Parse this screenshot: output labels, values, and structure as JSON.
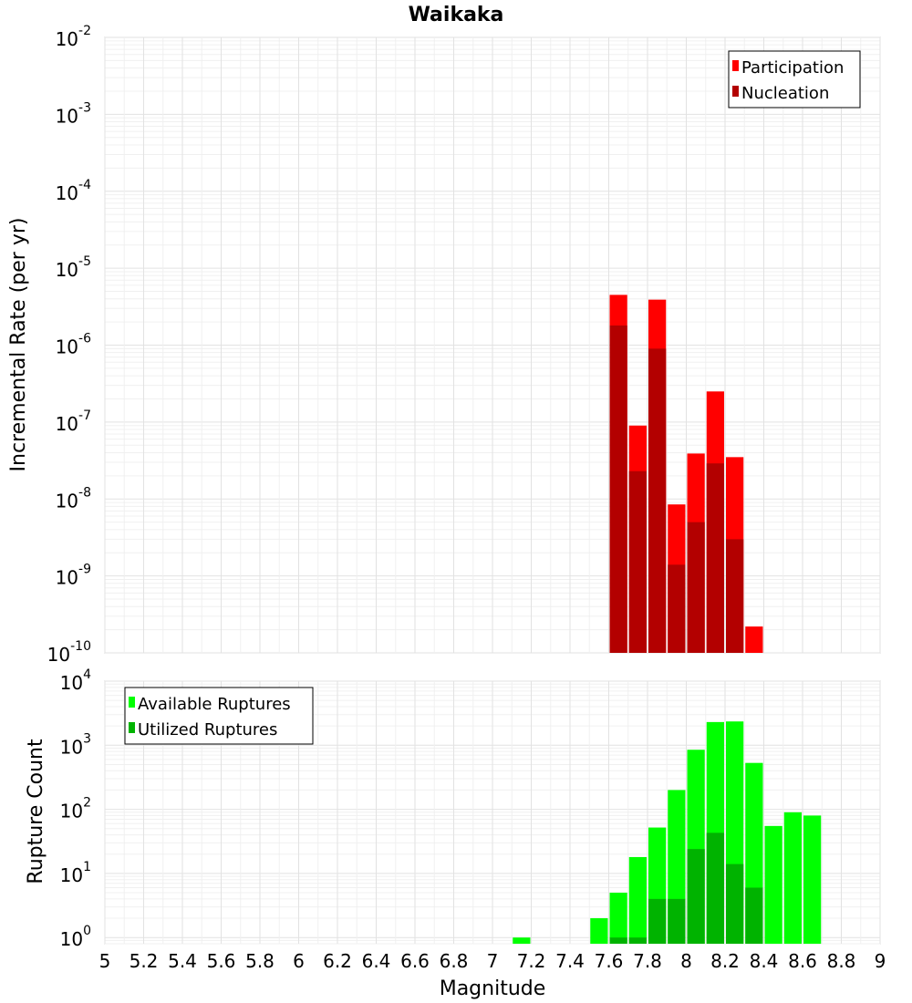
{
  "chart_data": [
    {
      "type": "bar",
      "title": "Waikaka",
      "xlabel": "",
      "ylabel": "Incremental Rate (per yr)",
      "xlim": [
        5,
        9
      ],
      "ylim": [
        1e-10,
        0.01
      ],
      "yscale": "log",
      "grid": true,
      "bar_width": 0.1,
      "yticks": [
        {
          "base": "10",
          "exp": "-2"
        },
        {
          "base": "10",
          "exp": "-3"
        },
        {
          "base": "10",
          "exp": "-4"
        },
        {
          "base": "10",
          "exp": "-5"
        },
        {
          "base": "10",
          "exp": "-6"
        },
        {
          "base": "10",
          "exp": "-7"
        },
        {
          "base": "10",
          "exp": "-8"
        },
        {
          "base": "10",
          "exp": "-9"
        },
        {
          "base": "10",
          "exp": "-10"
        }
      ],
      "legend": {
        "position": "top-right",
        "entries": [
          "Participation",
          "Nucleation"
        ]
      },
      "series": [
        {
          "name": "Participation",
          "color": "#ff0000",
          "x": [
            7.65,
            7.75,
            7.85,
            7.95,
            8.05,
            8.15,
            8.25,
            8.35
          ],
          "values": [
            4.5e-06,
            9e-08,
            3.9e-06,
            8.5e-09,
            3.9e-08,
            2.5e-07,
            3.5e-08,
            2.2e-10
          ]
        },
        {
          "name": "Nucleation",
          "color": "#b30000",
          "x": [
            7.65,
            7.75,
            7.85,
            7.95,
            8.05,
            8.15,
            8.25
          ],
          "values": [
            1.8e-06,
            2.3e-08,
            9e-07,
            1.4e-09,
            5e-09,
            2.9e-08,
            3e-09
          ]
        }
      ]
    },
    {
      "type": "bar",
      "title": "",
      "xlabel": "Magnitude",
      "ylabel": "Rupture Count",
      "xlim": [
        5,
        9
      ],
      "ylim": [
        0.8,
        10000
      ],
      "yscale": "log",
      "grid": true,
      "bar_width": 0.1,
      "xtick_labels": [
        "5",
        "5.2",
        "5.4",
        "5.6",
        "5.8",
        "6",
        "6.2",
        "6.4",
        "6.6",
        "6.8",
        "7",
        "7.2",
        "7.4",
        "7.6",
        "7.8",
        "8",
        "8.2",
        "8.4",
        "8.6",
        "8.8",
        "9"
      ],
      "yticks": [
        {
          "base": "10",
          "exp": "4"
        },
        {
          "base": "10",
          "exp": "3"
        },
        {
          "base": "10",
          "exp": "2"
        },
        {
          "base": "10",
          "exp": "1"
        },
        {
          "base": "10",
          "exp": "0"
        }
      ],
      "legend": {
        "position": "top-left",
        "entries": [
          "Available Ruptures",
          "Utilized Ruptures"
        ]
      },
      "series": [
        {
          "name": "Available Ruptures",
          "color": "#00ff00",
          "x": [
            7.15,
            7.55,
            7.65,
            7.75,
            7.85,
            7.95,
            8.05,
            8.15,
            8.25,
            8.35,
            8.45,
            8.55,
            8.65
          ],
          "values": [
            1,
            2,
            5,
            18,
            52,
            200,
            850,
            2300,
            2350,
            530,
            55,
            90,
            80
          ]
        },
        {
          "name": "Utilized Ruptures",
          "color": "#00b300",
          "x": [
            7.65,
            7.75,
            7.85,
            7.95,
            8.05,
            8.15,
            8.25,
            8.35
          ],
          "values": [
            1,
            1,
            4,
            4,
            24,
            43,
            14,
            6
          ]
        }
      ]
    }
  ]
}
